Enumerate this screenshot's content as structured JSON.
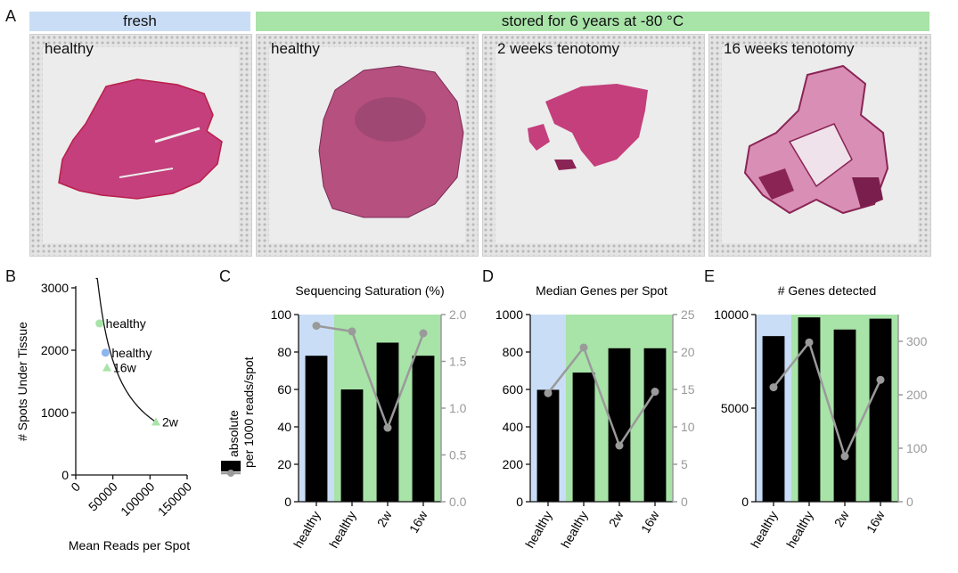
{
  "panel_a": {
    "letter": "A",
    "band_fresh": "fresh",
    "band_stored": "stored for 6 years at -80 °C",
    "colors": {
      "fresh": "#c9ddf6",
      "stored": "#a8e3a8",
      "tissue": "#c43f7c",
      "tissue_dark": "#8a2455"
    },
    "slides": [
      {
        "label": "healthy"
      },
      {
        "label": "healthy"
      },
      {
        "label": "2 weeks tenotomy"
      },
      {
        "label": "16 weeks tenotomy"
      }
    ]
  },
  "panel_b": {
    "letter": "B"
  },
  "panel_c": {
    "letter": "C"
  },
  "panel_d": {
    "letter": "D"
  },
  "panel_e": {
    "letter": "E"
  },
  "legend": {
    "absolute": "absolute",
    "per1000": "per 1000 reads/spot"
  },
  "chart_data": [
    {
      "id": "B",
      "type": "scatter",
      "title": "",
      "xlabel": "Mean Reads per Spot",
      "ylabel": "# Spots Under Tissue",
      "xlim": [
        0,
        150000
      ],
      "ylim": [
        0,
        3000
      ],
      "xticks": [
        0,
        50000,
        100000,
        150000
      ],
      "yticks": [
        0,
        1000,
        2000,
        3000
      ],
      "points": [
        {
          "label": "healthy",
          "x": 32000,
          "y": 2430,
          "color": "#a8e3a8",
          "marker": "circle"
        },
        {
          "label": "healthy",
          "x": 40000,
          "y": 1960,
          "color": "#8fb5ef",
          "marker": "circle"
        },
        {
          "label": "16w",
          "x": 42000,
          "y": 1720,
          "color": "#a8e3a8",
          "marker": "triangle"
        },
        {
          "label": "2w",
          "x": 108000,
          "y": 850,
          "color": "#a8e3a8",
          "marker": "triangle"
        }
      ],
      "curve": {
        "x_from": 27000,
        "x_to": 110000,
        "k": 91800000
      }
    },
    {
      "id": "C",
      "type": "bar",
      "title": "Sequencing Saturation (%)",
      "categories": [
        "healthy",
        "healthy",
        "2w",
        "16w"
      ],
      "series": [
        {
          "name": "absolute",
          "axis": "left",
          "values": [
            78,
            60,
            85,
            78
          ]
        },
        {
          "name": "per 1000 reads/spot",
          "axis": "right",
          "values": [
            1.88,
            1.82,
            0.79,
            1.8
          ]
        }
      ],
      "ylim_left": [
        0,
        100
      ],
      "yticks_left": [
        0,
        20,
        40,
        60,
        80,
        100
      ],
      "ylim_right": [
        0,
        2.0
      ],
      "yticks_right": [
        "0.0",
        "0.5",
        "1.0",
        "1.5",
        "2.0"
      ]
    },
    {
      "id": "D",
      "type": "bar",
      "title": "Median Genes per Spot",
      "categories": [
        "healthy",
        "healthy",
        "2w",
        "16w"
      ],
      "series": [
        {
          "name": "absolute",
          "axis": "left",
          "values": [
            598,
            690,
            820,
            820
          ]
        },
        {
          "name": "per 1000 reads/spot",
          "axis": "right",
          "values": [
            14.5,
            20.6,
            7.5,
            14.7
          ]
        }
      ],
      "ylim_left": [
        0,
        1000
      ],
      "yticks_left": [
        0,
        200,
        400,
        600,
        800,
        1000
      ],
      "ylim_right": [
        0,
        25
      ],
      "yticks_right": [
        "0",
        "5",
        "10",
        "15",
        "20",
        "25"
      ]
    },
    {
      "id": "E",
      "type": "bar",
      "title": "# Genes detected",
      "categories": [
        "healthy",
        "healthy",
        "2w",
        "16w"
      ],
      "series": [
        {
          "name": "absolute",
          "axis": "left",
          "values": [
            8850,
            9850,
            9200,
            9780
          ]
        },
        {
          "name": "per 1000 reads/spot",
          "axis": "right",
          "values": [
            214,
            298,
            85,
            228
          ]
        }
      ],
      "ylim_left": [
        0,
        10000
      ],
      "yticks_left": [
        0,
        5000,
        10000
      ],
      "ylim_right": [
        0,
        350
      ],
      "yticks_right": [
        "0",
        "100",
        "200",
        "300"
      ]
    }
  ]
}
